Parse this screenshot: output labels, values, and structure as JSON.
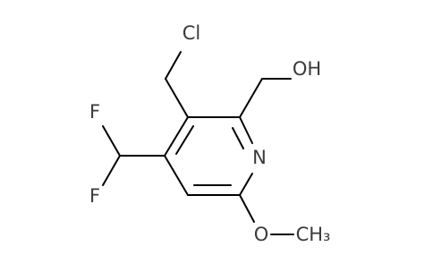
{
  "atoms": [
    {
      "label": "Cl"
    },
    {
      "label": "OH"
    },
    {
      "label": "N"
    },
    {
      "label": "F"
    },
    {
      "label": "F"
    },
    {
      "label": "O"
    },
    {
      "label": "CH₃"
    }
  ]
}
